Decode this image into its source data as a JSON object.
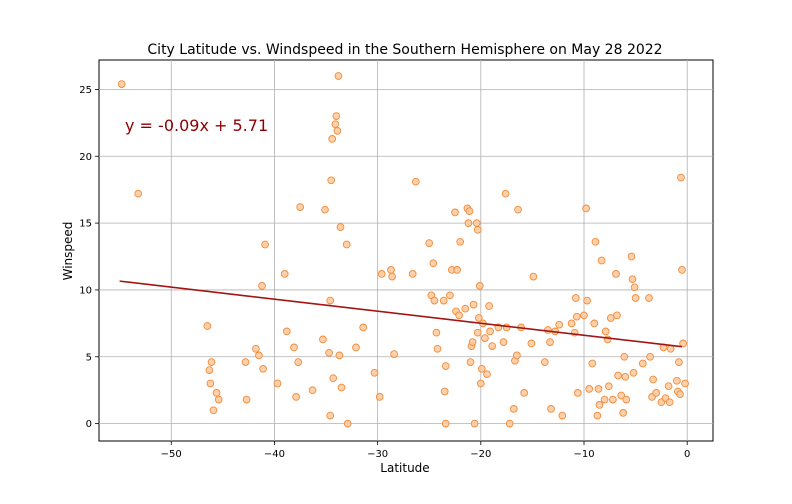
{
  "chart_data": {
    "type": "scatter",
    "title": "City Latitude vs. Windspeed in the Southern Hemisphere on  May 28 2022",
    "xlabel": "Latitude",
    "ylabel": "Winspeed",
    "xlim": [
      -57,
      2.5
    ],
    "ylim": [
      -1.3,
      27.2
    ],
    "xticks": [
      -50,
      -40,
      -30,
      -20,
      -10,
      0
    ],
    "yticks": [
      0,
      5,
      10,
      15,
      20,
      25
    ],
    "grid": true,
    "annotation": "y = -0.09x + 5.71",
    "regression": {
      "slope": -0.09,
      "intercept": 5.71,
      "x_range": [
        -55,
        -0.5
      ],
      "color": "#a31515"
    },
    "marker_face": "#ffc89a",
    "marker_edge": "#f08c3c",
    "points": [
      [
        -54.8,
        25.4
      ],
      [
        -53.2,
        17.2
      ],
      [
        -46.5,
        7.3
      ],
      [
        -46.3,
        4.0
      ],
      [
        -46.1,
        4.6
      ],
      [
        -46.2,
        3.0
      ],
      [
        -45.9,
        1.0
      ],
      [
        -45.6,
        2.3
      ],
      [
        -45.4,
        1.8
      ],
      [
        -42.8,
        4.6
      ],
      [
        -42.7,
        1.8
      ],
      [
        -41.8,
        5.6
      ],
      [
        -41.5,
        5.1
      ],
      [
        -41.2,
        10.3
      ],
      [
        -41.1,
        4.1
      ],
      [
        -40.9,
        13.4
      ],
      [
        -39.7,
        3.0
      ],
      [
        -39.0,
        11.2
      ],
      [
        -38.8,
        6.9
      ],
      [
        -38.1,
        5.7
      ],
      [
        -37.9,
        2.0
      ],
      [
        -37.7,
        4.6
      ],
      [
        -37.5,
        16.2
      ],
      [
        -36.3,
        2.5
      ],
      [
        -35.3,
        6.3
      ],
      [
        -35.1,
        16.0
      ],
      [
        -34.7,
        5.3
      ],
      [
        -34.6,
        9.2
      ],
      [
        -34.6,
        0.6
      ],
      [
        -34.5,
        18.2
      ],
      [
        -34.4,
        21.3
      ],
      [
        -34.3,
        3.4
      ],
      [
        -34.1,
        22.4
      ],
      [
        -34.0,
        23.0
      ],
      [
        -33.9,
        21.9
      ],
      [
        -33.8,
        26.0
      ],
      [
        -33.7,
        5.1
      ],
      [
        -33.6,
        14.7
      ],
      [
        -33.5,
        2.7
      ],
      [
        -33.0,
        13.4
      ],
      [
        -32.9,
        0.0
      ],
      [
        -32.1,
        5.7
      ],
      [
        -31.4,
        7.2
      ],
      [
        -30.3,
        3.8
      ],
      [
        -29.8,
        2.0
      ],
      [
        -29.6,
        11.2
      ],
      [
        -28.7,
        11.5
      ],
      [
        -28.6,
        11.0
      ],
      [
        -28.4,
        5.2
      ],
      [
        -26.6,
        11.2
      ],
      [
        -26.3,
        18.1
      ],
      [
        -25.0,
        13.5
      ],
      [
        -24.8,
        9.6
      ],
      [
        -24.6,
        12.0
      ],
      [
        -24.5,
        9.2
      ],
      [
        -24.3,
        6.8
      ],
      [
        -24.2,
        5.6
      ],
      [
        -23.6,
        9.2
      ],
      [
        -23.4,
        4.3
      ],
      [
        -23.5,
        2.4
      ],
      [
        -23.4,
        0.0
      ],
      [
        -23.0,
        9.6
      ],
      [
        -22.8,
        11.5
      ],
      [
        -22.5,
        15.8
      ],
      [
        -22.4,
        8.4
      ],
      [
        -22.3,
        11.5
      ],
      [
        -22.1,
        8.1
      ],
      [
        -22.0,
        13.6
      ],
      [
        -21.5,
        8.6
      ],
      [
        -21.3,
        16.1
      ],
      [
        -21.2,
        15.0
      ],
      [
        -21.1,
        15.9
      ],
      [
        -21.0,
        4.6
      ],
      [
        -20.9,
        5.8
      ],
      [
        -20.8,
        6.1
      ],
      [
        -20.7,
        8.9
      ],
      [
        -20.6,
        0.0
      ],
      [
        -20.4,
        15.0
      ],
      [
        -20.3,
        14.5
      ],
      [
        -20.3,
        6.8
      ],
      [
        -20.2,
        7.9
      ],
      [
        -20.1,
        10.3
      ],
      [
        -20.0,
        3.0
      ],
      [
        -19.9,
        4.1
      ],
      [
        -19.8,
        7.5
      ],
      [
        -19.6,
        6.4
      ],
      [
        -19.4,
        3.7
      ],
      [
        -19.2,
        8.8
      ],
      [
        -19.1,
        6.9
      ],
      [
        -18.9,
        5.8
      ],
      [
        -18.3,
        7.2
      ],
      [
        -17.8,
        6.1
      ],
      [
        -17.6,
        17.2
      ],
      [
        -17.5,
        7.2
      ],
      [
        -17.2,
        0.0
      ],
      [
        -16.8,
        1.1
      ],
      [
        -16.7,
        4.7
      ],
      [
        -16.5,
        5.1
      ],
      [
        -16.4,
        16.0
      ],
      [
        -16.1,
        7.2
      ],
      [
        -15.8,
        2.3
      ],
      [
        -15.1,
        6.0
      ],
      [
        -14.9,
        11.0
      ],
      [
        -13.8,
        4.6
      ],
      [
        -13.5,
        7.0
      ],
      [
        -13.3,
        6.1
      ],
      [
        -13.2,
        1.1
      ],
      [
        -12.8,
        6.9
      ],
      [
        -12.4,
        7.4
      ],
      [
        -12.1,
        0.6
      ],
      [
        -11.2,
        7.5
      ],
      [
        -10.9,
        6.8
      ],
      [
        -10.8,
        9.4
      ],
      [
        -10.7,
        8.0
      ],
      [
        -10.6,
        2.3
      ],
      [
        -10.0,
        8.1
      ],
      [
        -9.8,
        16.1
      ],
      [
        -9.7,
        9.2
      ],
      [
        -9.5,
        2.6
      ],
      [
        -9.2,
        4.5
      ],
      [
        -9.0,
        7.5
      ],
      [
        -8.9,
        13.6
      ],
      [
        -8.7,
        0.6
      ],
      [
        -8.6,
        2.6
      ],
      [
        -8.5,
        1.4
      ],
      [
        -8.3,
        12.2
      ],
      [
        -8.0,
        1.8
      ],
      [
        -7.9,
        6.9
      ],
      [
        -7.7,
        6.3
      ],
      [
        -7.6,
        2.8
      ],
      [
        -7.4,
        7.9
      ],
      [
        -7.2,
        1.8
      ],
      [
        -6.9,
        11.2
      ],
      [
        -6.8,
        8.1
      ],
      [
        -6.7,
        3.6
      ],
      [
        -6.4,
        2.1
      ],
      [
        -6.2,
        0.8
      ],
      [
        -6.1,
        5.0
      ],
      [
        -6.0,
        3.5
      ],
      [
        -5.9,
        1.8
      ],
      [
        -5.4,
        12.5
      ],
      [
        -5.3,
        10.8
      ],
      [
        -5.1,
        10.2
      ],
      [
        -5.0,
        9.4
      ],
      [
        -5.2,
        3.8
      ],
      [
        -4.3,
        4.5
      ],
      [
        -3.7,
        9.4
      ],
      [
        -3.6,
        5.0
      ],
      [
        -3.4,
        2.0
      ],
      [
        -3.3,
        3.3
      ],
      [
        -3.0,
        2.3
      ],
      [
        -2.5,
        1.6
      ],
      [
        -2.3,
        5.7
      ],
      [
        -2.1,
        1.9
      ],
      [
        -1.8,
        2.8
      ],
      [
        -1.7,
        1.6
      ],
      [
        -1.6,
        5.6
      ],
      [
        -1.0,
        3.2
      ],
      [
        -0.9,
        2.4
      ],
      [
        -0.8,
        4.6
      ],
      [
        -0.7,
        2.2
      ],
      [
        -0.6,
        18.4
      ],
      [
        -0.5,
        11.5
      ],
      [
        -0.4,
        6.0
      ],
      [
        -0.2,
        3.0
      ]
    ]
  }
}
